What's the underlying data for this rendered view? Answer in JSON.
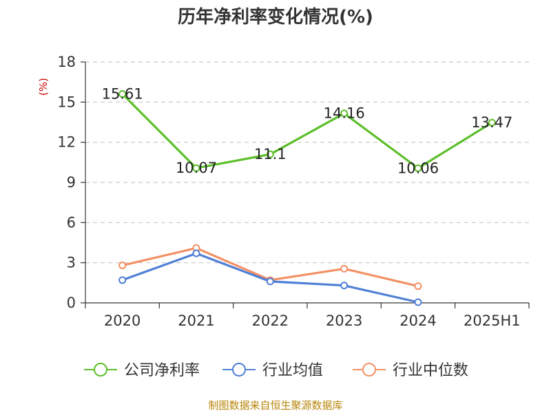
{
  "chart_data": {
    "type": "line",
    "title": "历年净利率变化情况(%)",
    "ylabel": "(%)",
    "categories": [
      "2020",
      "2021",
      "2022",
      "2023",
      "2024",
      "2025H1"
    ],
    "ylim": [
      0,
      18
    ],
    "yticks": [
      0,
      3,
      6,
      9,
      12,
      15,
      18
    ],
    "grid": true,
    "legend_position": "bottom",
    "series": [
      {
        "name": "公司净利率",
        "color": "#5cbf2a",
        "values": [
          15.61,
          10.07,
          11.1,
          14.16,
          10.06,
          13.47
        ],
        "labels": [
          "15.61",
          "10.07",
          "11.1",
          "14.16",
          "10.06",
          "13.47"
        ]
      },
      {
        "name": "行业均值",
        "color": "#4f7fd6",
        "values": [
          1.7,
          3.7,
          1.6,
          1.3,
          0.05,
          null
        ]
      },
      {
        "name": "行业中位数",
        "color": "#f39063",
        "values": [
          2.8,
          4.1,
          1.7,
          2.55,
          1.25,
          null
        ]
      }
    ]
  },
  "source_note": "制图数据来自恒生聚源数据库"
}
